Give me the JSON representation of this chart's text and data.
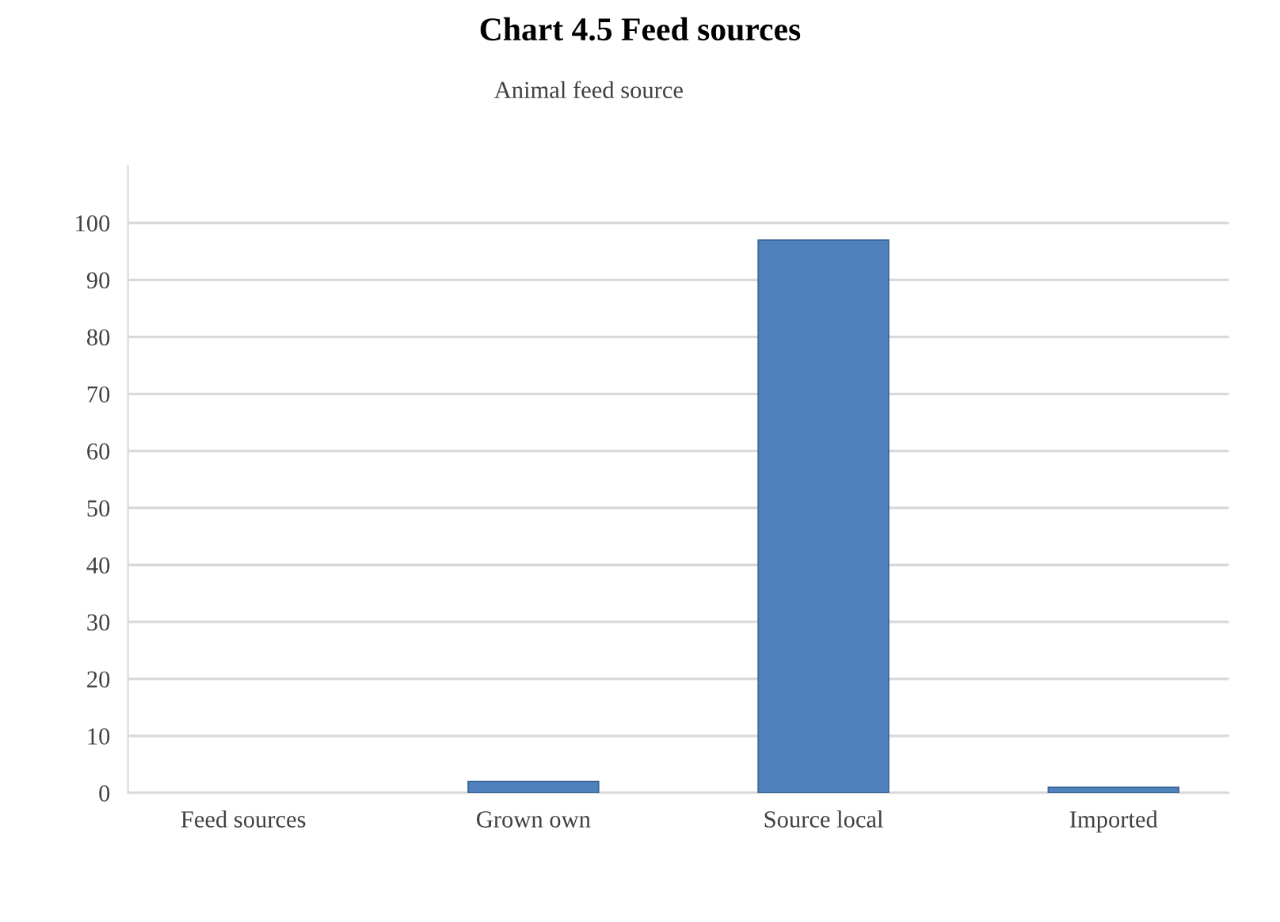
{
  "chart_data": {
    "type": "bar",
    "title": "Chart 4.5 Feed sources",
    "subtitle": "Animal feed source",
    "categories": [
      "Feed sources",
      "Grown own",
      "Source local",
      "Imported"
    ],
    "values": [
      null,
      2,
      97,
      1
    ],
    "color": "#4f81bd",
    "ylim": [
      0,
      110
    ],
    "yticks": [
      0,
      10,
      20,
      30,
      40,
      50,
      60,
      70,
      80,
      90,
      100
    ],
    "grid": "y"
  }
}
